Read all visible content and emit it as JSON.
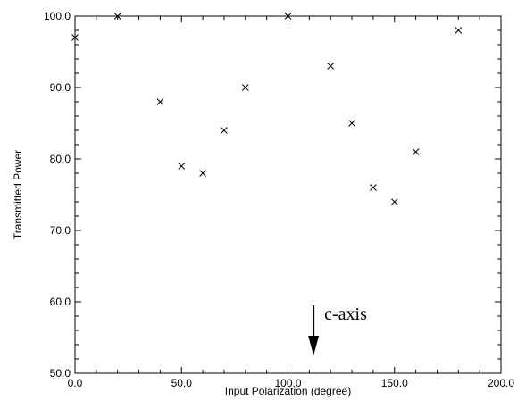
{
  "chart_data": {
    "type": "scatter",
    "xlabel": "Input Polarization (degree)",
    "ylabel": "Transmitted Power",
    "xlim": [
      0,
      200
    ],
    "ylim": [
      50,
      100
    ],
    "x_ticks": [
      "0.0",
      "50.0",
      "100.0",
      "150.0",
      "200.0"
    ],
    "y_ticks": [
      "50.0",
      "60.0",
      "70.0",
      "80.0",
      "90.0",
      "100.0"
    ],
    "x_tick_values": [
      0,
      50,
      100,
      150,
      200
    ],
    "y_tick_values": [
      50,
      60,
      70,
      80,
      90,
      100
    ],
    "marker": "x",
    "grid": false,
    "series": [
      {
        "points": [
          {
            "x": 0,
            "y": 97
          },
          {
            "x": 20,
            "y": 100
          },
          {
            "x": 40,
            "y": 88
          },
          {
            "x": 50,
            "y": 79
          },
          {
            "x": 60,
            "y": 78
          },
          {
            "x": 70,
            "y": 84
          },
          {
            "x": 80,
            "y": 90
          },
          {
            "x": 100,
            "y": 100
          },
          {
            "x": 120,
            "y": 93
          },
          {
            "x": 130,
            "y": 85
          },
          {
            "x": 140,
            "y": 76
          },
          {
            "x": 150,
            "y": 74
          },
          {
            "x": 160,
            "y": 81
          },
          {
            "x": 180,
            "y": 98
          }
        ]
      }
    ],
    "annotation": {
      "text": "c-axis",
      "arrow_x": 112,
      "arrow_y_from": 59.5,
      "arrow_y_to": 52.5
    }
  }
}
